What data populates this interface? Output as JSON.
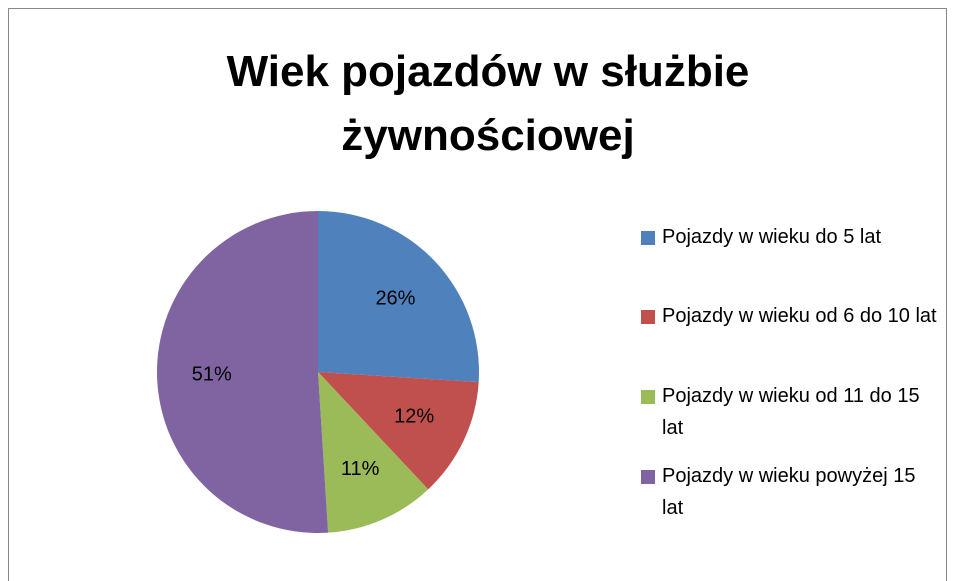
{
  "chart_data": {
    "type": "pie",
    "title": "Wiek pojazdów w służbie żywnościowej",
    "categories": [
      "Pojazdy w wieku do 5 lat",
      "Pojazdy w wieku od 6 do 10 lat",
      "Pojazdy w wieku od 11 do 15 lat",
      "Pojazdy w wieku powyżej 15 lat"
    ],
    "values": [
      26,
      12,
      11,
      51
    ],
    "value_labels": [
      "26%",
      "12%",
      "11%",
      "51%"
    ],
    "colors": [
      "#4f81bd",
      "#c0504d",
      "#9bbb59",
      "#8064a2"
    ],
    "legend": "right"
  }
}
